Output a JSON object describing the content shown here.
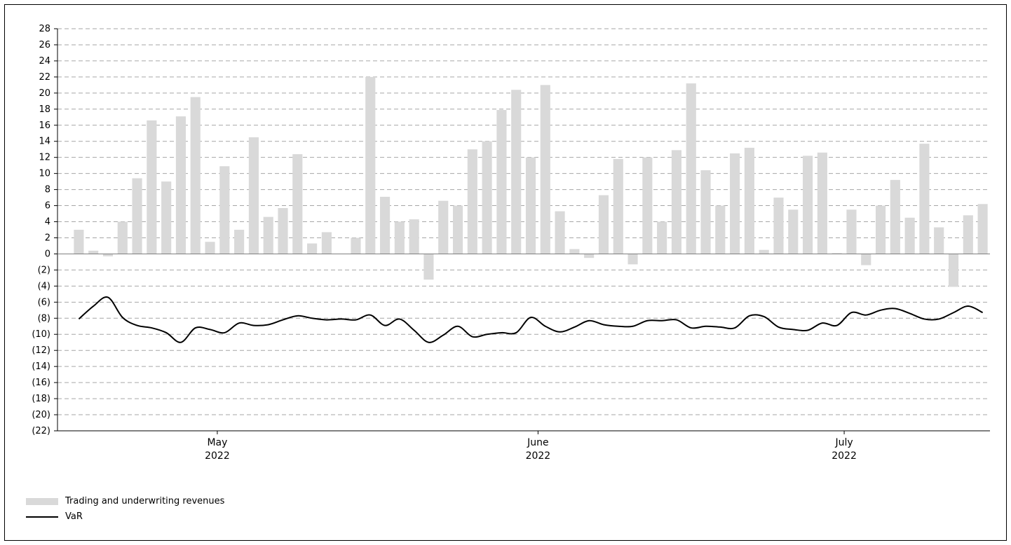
{
  "chart_data": {
    "type": "bar",
    "ylim": [
      -22,
      28
    ],
    "y_ticks": [
      28,
      26,
      24,
      22,
      20,
      18,
      16,
      14,
      12,
      10,
      8,
      6,
      4,
      2,
      0,
      -2,
      -4,
      -6,
      -8,
      -10,
      -12,
      -14,
      -16,
      -18,
      -20,
      -22
    ],
    "y_tick_labels": [
      "28",
      "26",
      "24",
      "22",
      "20",
      "18",
      "16",
      "14",
      "12",
      "10",
      "8",
      "6",
      "4",
      "2",
      "0",
      "(2)",
      "(4)",
      "(6)",
      "(8)",
      "(10)",
      "(12)",
      "(14)",
      "(16)",
      "(18)",
      "(20)",
      "(22)"
    ],
    "grid": "dashed horizontal",
    "x_labels": [
      {
        "month": "May",
        "year": "2022",
        "after_day": 9
      },
      {
        "month": "June",
        "year": "2022",
        "after_day": 31
      },
      {
        "month": "July",
        "year": "2022",
        "after_day": 52
      }
    ],
    "days": 63,
    "series": [
      {
        "name": "Trading and underwriting revenues",
        "type": "bar",
        "color": "#d9d9d9",
        "values": [
          3.0,
          0.4,
          -0.3,
          4.0,
          9.4,
          16.6,
          9.0,
          17.1,
          19.5,
          1.5,
          10.9,
          3.0,
          14.5,
          4.6,
          5.7,
          12.4,
          1.3,
          2.7,
          0,
          2.0,
          22.0,
          7.1,
          4.0,
          4.3,
          -3.2,
          6.6,
          6.0,
          13.0,
          14.0,
          17.9,
          20.4,
          12.0,
          21.0,
          5.3,
          0.6,
          -0.5,
          7.3,
          11.8,
          -1.3,
          12.0,
          4.0,
          12.9,
          21.2,
          10.4,
          6.0,
          12.5,
          13.2,
          0.5,
          7.0,
          5.5,
          12.2,
          12.6,
          0.1,
          5.5,
          -1.4,
          6.0,
          9.2,
          4.5,
          13.7,
          3.3,
          -4.1,
          4.8,
          6.2
        ]
      },
      {
        "name": "VaR",
        "type": "line",
        "color": "#000000",
        "values": [
          -8.1,
          -6.5,
          -5.4,
          -7.9,
          -8.9,
          -9.2,
          -9.8,
          -11.0,
          -9.2,
          -9.4,
          -9.8,
          -8.6,
          -8.9,
          -8.8,
          -8.2,
          -7.7,
          -8.0,
          -8.2,
          -8.1,
          -8.2,
          -7.6,
          -8.9,
          -8.1,
          -9.5,
          -11.0,
          -10.1,
          -9.0,
          -10.3,
          -10.0,
          -9.8,
          -9.8,
          -7.9,
          -9.0,
          -9.7,
          -9.1,
          -8.3,
          -8.8,
          -9.0,
          -9.0,
          -8.3,
          -8.3,
          -8.2,
          -9.2,
          -9.0,
          -9.1,
          -9.2,
          -7.7,
          -7.8,
          -9.1,
          -9.4,
          -9.5,
          -8.6,
          -8.9,
          -7.3,
          -7.6,
          -7.0,
          -6.8,
          -7.4,
          -8.1,
          -8.1,
          -7.3,
          -6.5,
          -7.3
        ]
      }
    ],
    "legend": {
      "position": "bottom-left",
      "entries": [
        "Trading and underwriting revenues",
        "VaR"
      ]
    }
  }
}
